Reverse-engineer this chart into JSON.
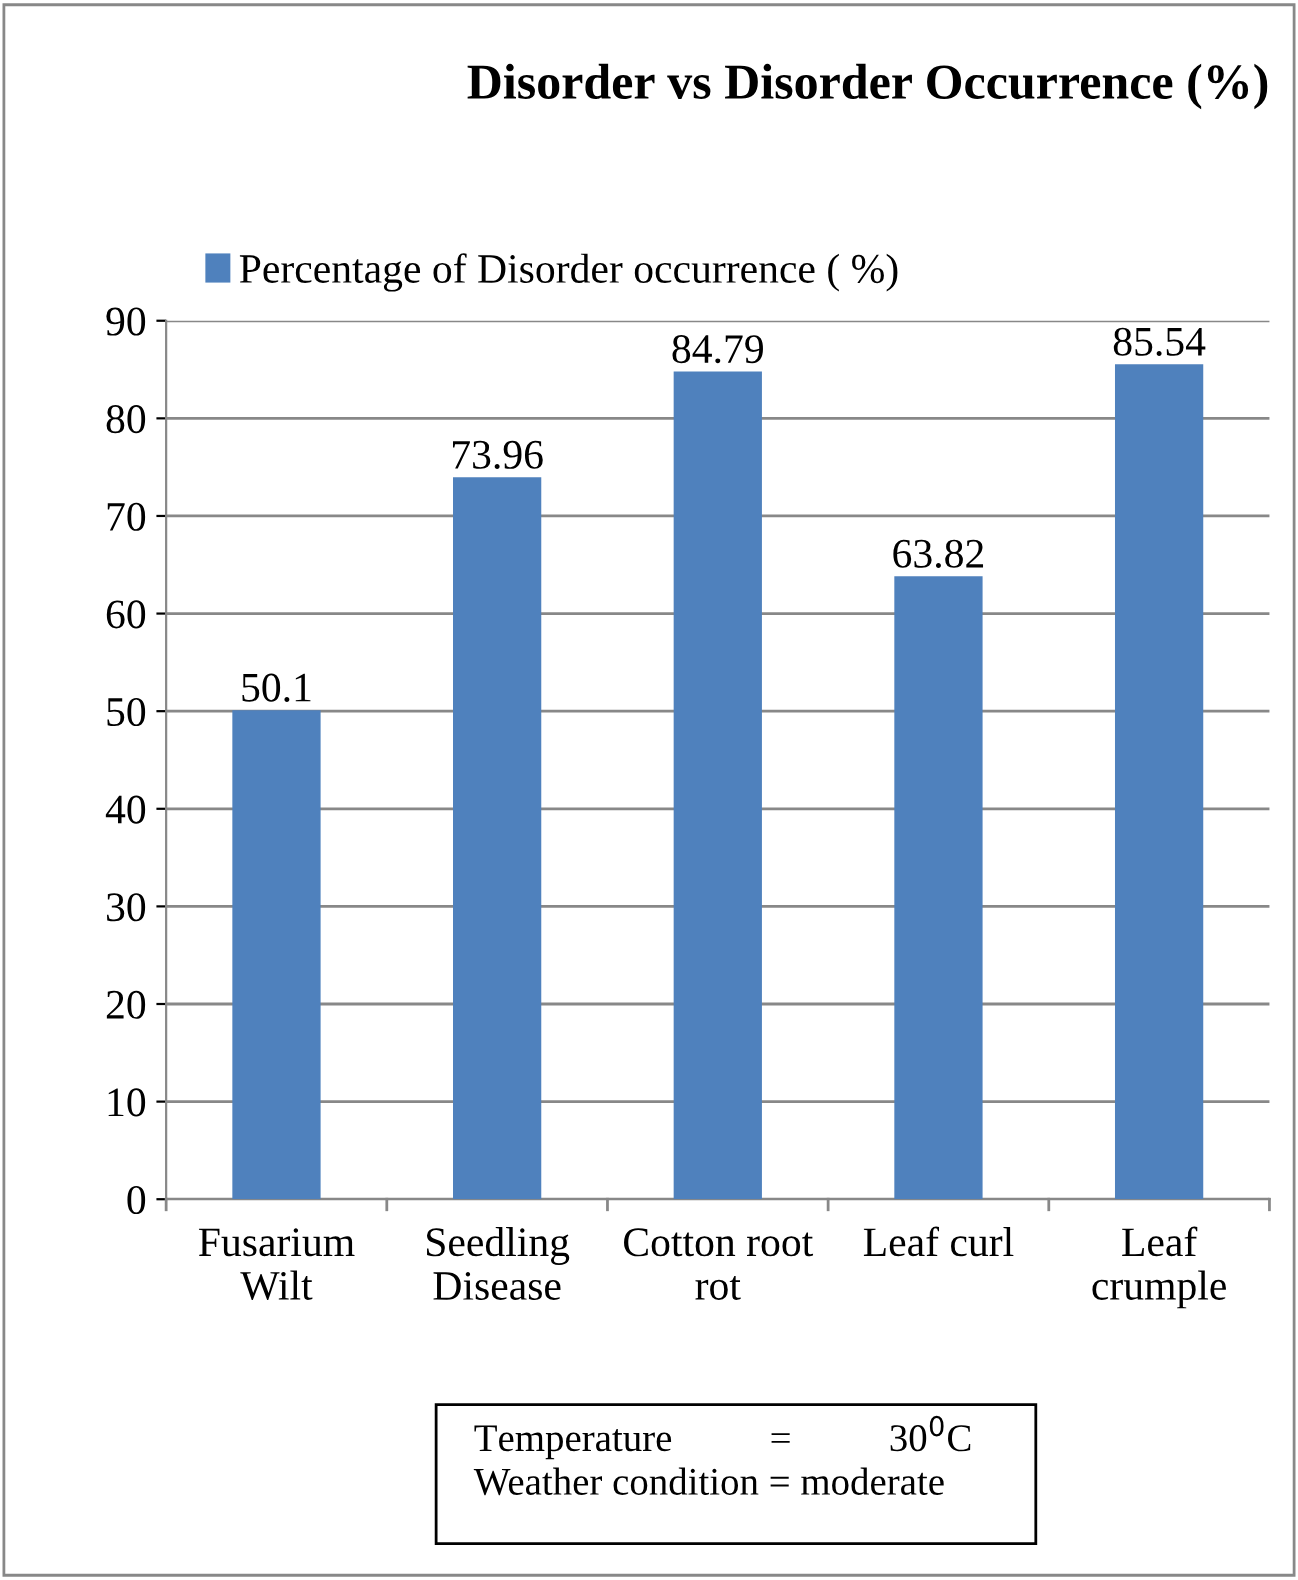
{
  "chart_data": {
    "type": "bar",
    "title": "Disorder vs Disorder Occurrence (%)",
    "categories": [
      "Fusarium\nWilt",
      "Seedling\nDisease",
      "Cotton root\nrot",
      "Leaf curl",
      "Leaf\ncrumple"
    ],
    "series": [
      {
        "name": "Percentage of Disorder occurrence ( %)",
        "color": "#4f81bd",
        "values": [
          50.1,
          73.96,
          84.79,
          63.82,
          85.54
        ]
      }
    ],
    "ylim": [
      0,
      90
    ],
    "yticks": [
      0,
      10,
      20,
      30,
      40,
      50,
      60,
      70,
      80,
      90
    ],
    "grid": "y",
    "legend": "top",
    "data_labels": true,
    "annotations": [
      "Temperature          =          30$^{0}$C",
      "Weather condition = moderate"
    ]
  }
}
